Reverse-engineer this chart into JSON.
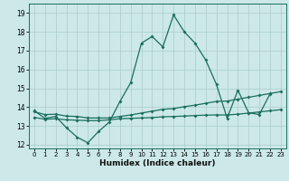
{
  "title": "",
  "xlabel": "Humidex (Indice chaleur)",
  "bg_color": "#cce8e8",
  "grid_color": "#aacccc",
  "line_color": "#1a6e5e",
  "xlim": [
    -0.5,
    23.5
  ],
  "ylim": [
    11.8,
    19.5
  ],
  "xticks": [
    0,
    1,
    2,
    3,
    4,
    5,
    6,
    7,
    8,
    9,
    10,
    11,
    12,
    13,
    14,
    15,
    16,
    17,
    18,
    19,
    20,
    21,
    22,
    23
  ],
  "yticks": [
    12,
    13,
    14,
    15,
    16,
    17,
    18,
    19
  ],
  "line1_x": [
    0,
    1,
    2,
    3,
    4,
    5,
    6,
    7,
    8,
    9,
    10,
    11,
    12,
    13,
    14,
    15,
    16,
    17,
    18,
    19,
    20,
    21,
    22
  ],
  "line1_y": [
    13.8,
    13.4,
    13.5,
    12.9,
    12.4,
    12.1,
    12.7,
    13.2,
    14.3,
    15.3,
    17.4,
    17.75,
    17.2,
    18.9,
    18.0,
    17.4,
    16.5,
    15.2,
    13.4,
    14.9,
    13.7,
    13.6,
    14.7
  ],
  "line2_x": [
    0,
    1,
    2,
    3,
    4,
    5,
    6,
    7,
    8,
    9,
    10,
    11,
    12,
    13,
    14,
    15,
    16,
    17,
    18,
    19,
    20,
    21,
    22,
    23
  ],
  "line2_y": [
    13.45,
    13.35,
    13.38,
    13.32,
    13.3,
    13.28,
    13.28,
    13.32,
    13.38,
    13.4,
    13.42,
    13.44,
    13.48,
    13.5,
    13.52,
    13.55,
    13.57,
    13.58,
    13.58,
    13.62,
    13.68,
    13.74,
    13.8,
    13.86
  ],
  "line3_x": [
    0,
    1,
    2,
    3,
    4,
    5,
    6,
    7,
    8,
    9,
    10,
    11,
    12,
    13,
    14,
    15,
    16,
    17,
    18,
    19,
    20,
    21,
    22,
    23
  ],
  "line3_y": [
    13.75,
    13.6,
    13.62,
    13.52,
    13.5,
    13.42,
    13.42,
    13.42,
    13.5,
    13.58,
    13.68,
    13.78,
    13.88,
    13.92,
    14.02,
    14.1,
    14.2,
    14.3,
    14.32,
    14.42,
    14.52,
    14.62,
    14.72,
    14.82
  ]
}
